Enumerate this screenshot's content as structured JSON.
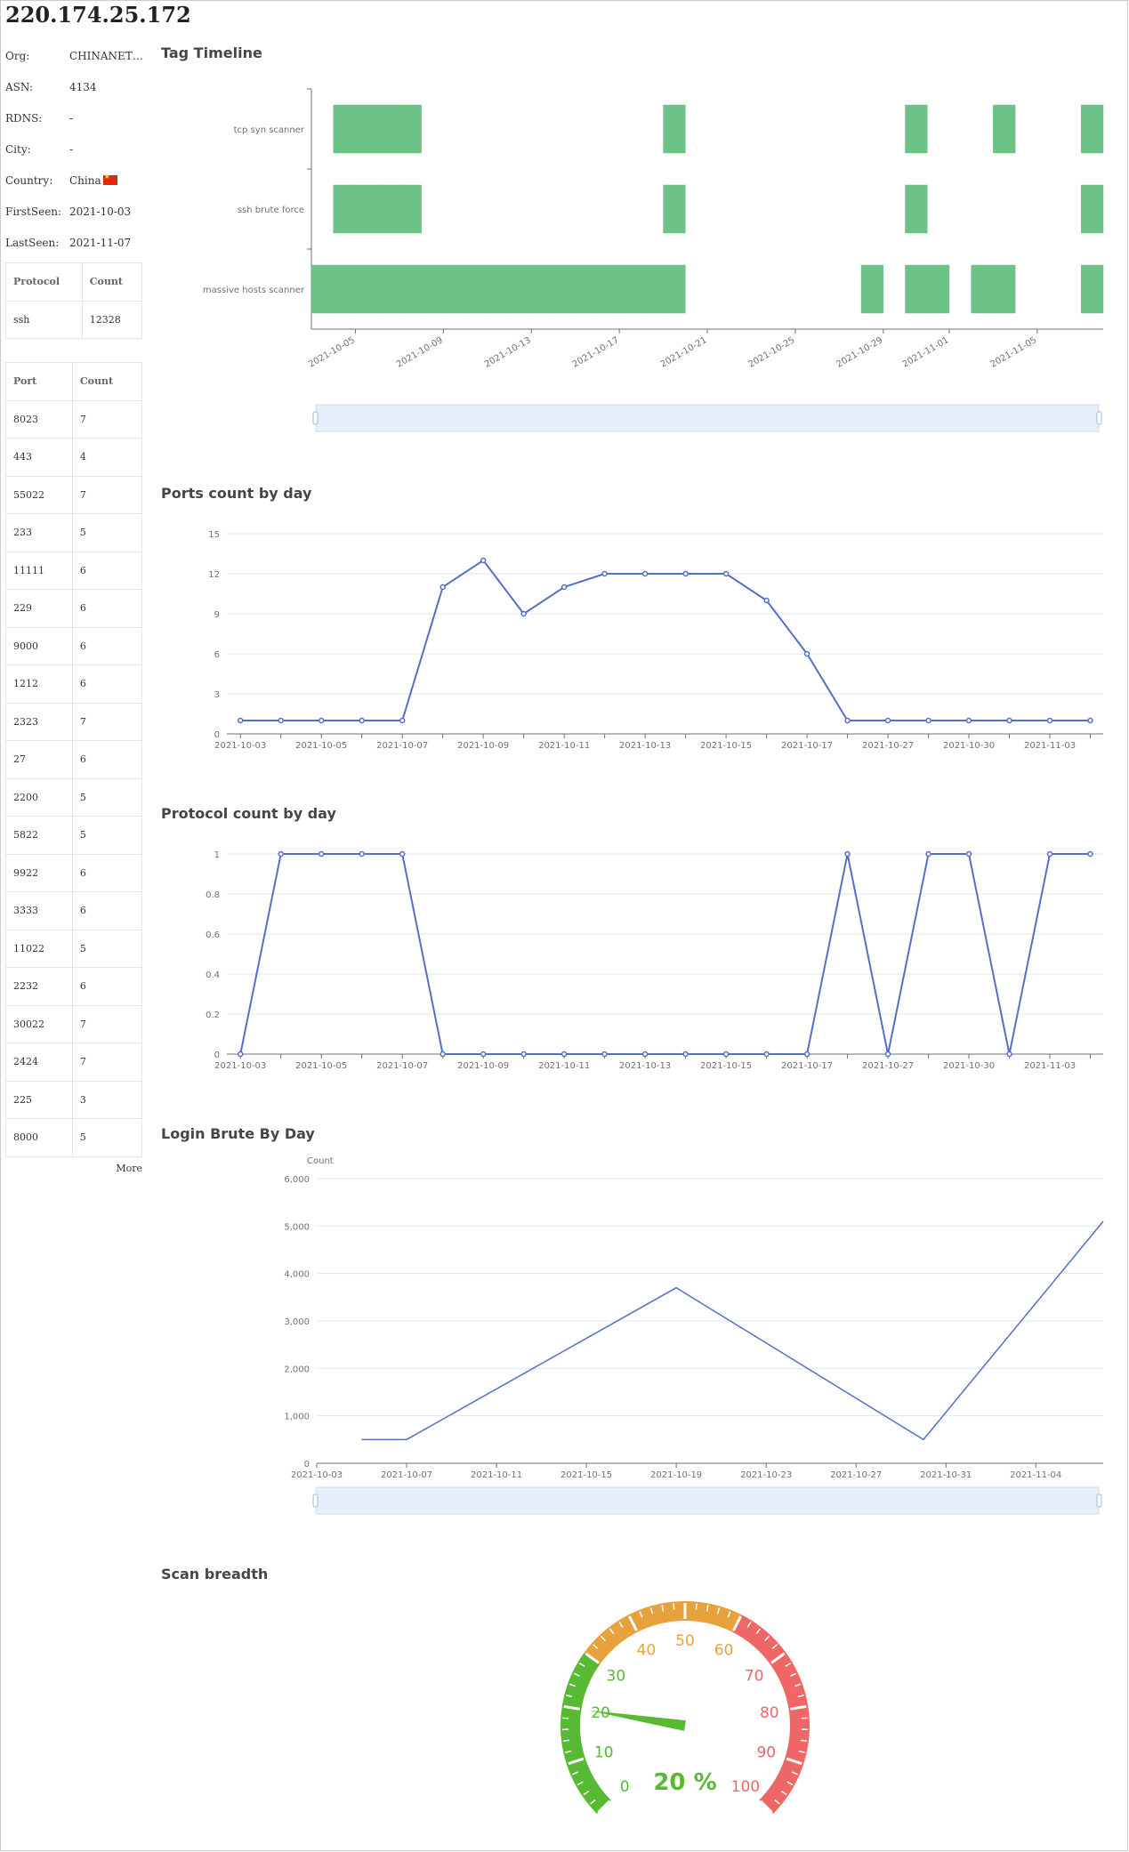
{
  "ip": "220.174.25.172",
  "info": [
    {
      "label": "Org:",
      "value": "CHINANET…"
    },
    {
      "label": "ASN:",
      "value": "4134"
    },
    {
      "label": "RDNS:",
      "value": "-"
    },
    {
      "label": "City:",
      "value": "-"
    },
    {
      "label": "Country:",
      "value": "China",
      "flag": true
    },
    {
      "label": "FirstSeen:",
      "value": "2021-10-03"
    },
    {
      "label": "LastSeen:",
      "value": "2021-11-07"
    }
  ],
  "protocol_table": {
    "headers": [
      "Protocol",
      "Count"
    ],
    "rows": [
      [
        "ssh",
        "12328"
      ]
    ]
  },
  "port_table": {
    "headers": [
      "Port",
      "Count"
    ],
    "rows": [
      [
        "8023",
        "7"
      ],
      [
        "443",
        "4"
      ],
      [
        "55022",
        "7"
      ],
      [
        "233",
        "5"
      ],
      [
        "11111",
        "6"
      ],
      [
        "229",
        "6"
      ],
      [
        "9000",
        "6"
      ],
      [
        "1212",
        "6"
      ],
      [
        "2323",
        "7"
      ],
      [
        "27",
        "6"
      ],
      [
        "2200",
        "5"
      ],
      [
        "5822",
        "5"
      ],
      [
        "9922",
        "6"
      ],
      [
        "3333",
        "6"
      ],
      [
        "11022",
        "5"
      ],
      [
        "2232",
        "6"
      ],
      [
        "30022",
        "7"
      ],
      [
        "2424",
        "7"
      ],
      [
        "225",
        "3"
      ],
      [
        "8000",
        "5"
      ]
    ]
  },
  "more_label": "More",
  "sections": {
    "tag_timeline": "Tag Timeline",
    "ports": "Ports count by day",
    "protocol": "Protocol count by day",
    "login": "Login Brute By Day",
    "scan": "Scan breadth"
  },
  "colors": {
    "bar": "#6cc287",
    "line": "#5470c6",
    "zoom": "#e7eefc",
    "gauge_green": "#58b933",
    "gauge_orange": "#e8a23d",
    "gauge_red": "#ee6666"
  },
  "chart_data": [
    {
      "type": "timeline",
      "title": "Tag Timeline",
      "categories": [
        "tcp syn scanner",
        "ssh brute force",
        "massive hosts scanner"
      ],
      "x_ticks": [
        "2021-10-05",
        "2021-10-09",
        "2021-10-13",
        "2021-10-17",
        "2021-10-21",
        "2021-10-25",
        "2021-10-29",
        "2021-11-01",
        "2021-11-05"
      ],
      "x_range": [
        "2021-10-03",
        "2021-11-07"
      ],
      "rows": [
        {
          "name": "tcp syn scanner",
          "days": [
            "2021-10-04",
            "2021-10-05",
            "2021-10-06",
            "2021-10-07",
            "2021-10-19",
            "2021-10-30",
            "2021-11-03",
            "2021-11-07"
          ]
        },
        {
          "name": "ssh brute force",
          "days": [
            "2021-10-04",
            "2021-10-05",
            "2021-10-06",
            "2021-10-07",
            "2021-10-19",
            "2021-10-30",
            "2021-11-07"
          ]
        },
        {
          "name": "massive hosts scanner",
          "days": [
            "2021-10-03",
            "2021-10-04",
            "2021-10-05",
            "2021-10-06",
            "2021-10-07",
            "2021-10-08",
            "2021-10-09",
            "2021-10-10",
            "2021-10-11",
            "2021-10-12",
            "2021-10-13",
            "2021-10-14",
            "2021-10-15",
            "2021-10-16",
            "2021-10-17",
            "2021-10-18",
            "2021-10-19",
            "2021-10-28",
            "2021-10-30",
            "2021-10-31",
            "2021-11-02",
            "2021-11-03",
            "2021-11-07"
          ]
        }
      ]
    },
    {
      "type": "line",
      "title": "Ports count by day",
      "x": [
        "2021-10-03",
        "2021-10-04",
        "2021-10-05",
        "2021-10-06",
        "2021-10-07",
        "2021-10-08",
        "2021-10-09",
        "2021-10-10",
        "2021-10-11",
        "2021-10-12",
        "2021-10-13",
        "2021-10-14",
        "2021-10-15",
        "2021-10-16",
        "2021-10-17",
        "2021-10-18",
        "2021-10-27",
        "2021-10-28",
        "2021-10-30",
        "2021-10-31",
        "2021-11-03",
        "2021-11-07"
      ],
      "x_labels": [
        "2021-10-03",
        "2021-10-05",
        "2021-10-07",
        "2021-10-09",
        "2021-10-11",
        "2021-10-13",
        "2021-10-15",
        "2021-10-17",
        "2021-10-27",
        "2021-10-30",
        "2021-11-03"
      ],
      "values": [
        1,
        1,
        1,
        1,
        1,
        11,
        13,
        9,
        11,
        12,
        12,
        12,
        12,
        10,
        6,
        1,
        1,
        1,
        1,
        1,
        1,
        1
      ],
      "y_ticks": [
        0,
        3,
        6,
        9,
        12,
        15
      ],
      "ylim": [
        0,
        15
      ]
    },
    {
      "type": "line",
      "title": "Protocol count by day",
      "x": [
        "2021-10-03",
        "2021-10-04",
        "2021-10-05",
        "2021-10-06",
        "2021-10-07",
        "2021-10-08",
        "2021-10-09",
        "2021-10-10",
        "2021-10-11",
        "2021-10-12",
        "2021-10-13",
        "2021-10-14",
        "2021-10-15",
        "2021-10-16",
        "2021-10-17",
        "2021-10-18",
        "2021-10-27",
        "2021-10-28",
        "2021-10-30",
        "2021-10-31",
        "2021-11-03",
        "2021-11-07"
      ],
      "x_labels": [
        "2021-10-03",
        "2021-10-05",
        "2021-10-07",
        "2021-10-09",
        "2021-10-11",
        "2021-10-13",
        "2021-10-15",
        "2021-10-17",
        "2021-10-27",
        "2021-10-30",
        "2021-11-03"
      ],
      "values": [
        0,
        1,
        1,
        1,
        1,
        0,
        0,
        0,
        0,
        0,
        0,
        0,
        0,
        0,
        0,
        1,
        0,
        1,
        1,
        0,
        1,
        1
      ],
      "y_ticks": [
        "0",
        "0.2",
        "0.4",
        "0.6",
        "0.8",
        "1"
      ],
      "ylim": [
        0,
        1
      ]
    },
    {
      "type": "line",
      "title": "Login Brute By Day",
      "ylabel": "Count",
      "x": [
        "2021-10-05",
        "2021-10-07",
        "2021-10-19",
        "2021-10-30",
        "2021-11-07"
      ],
      "values": [
        500,
        500,
        3700,
        500,
        5100
      ],
      "x_labels": [
        "2021-10-03",
        "2021-10-07",
        "2021-10-11",
        "2021-10-15",
        "2021-10-19",
        "2021-10-23",
        "2021-10-27",
        "2021-10-31",
        "2021-11-04"
      ],
      "y_ticks": [
        "0",
        "1,000",
        "2,000",
        "3,000",
        "4,000",
        "5,000",
        "6,000"
      ],
      "ylim": [
        0,
        6000
      ],
      "x_range": [
        "2021-10-03",
        "2021-11-07"
      ]
    },
    {
      "type": "gauge",
      "title": "Scan breadth",
      "value": 20,
      "detail": "20 %",
      "ticks": [
        "0",
        "10",
        "20",
        "30",
        "40",
        "50",
        "60",
        "70",
        "80",
        "90",
        "100"
      ],
      "range": [
        0,
        100
      ]
    }
  ]
}
